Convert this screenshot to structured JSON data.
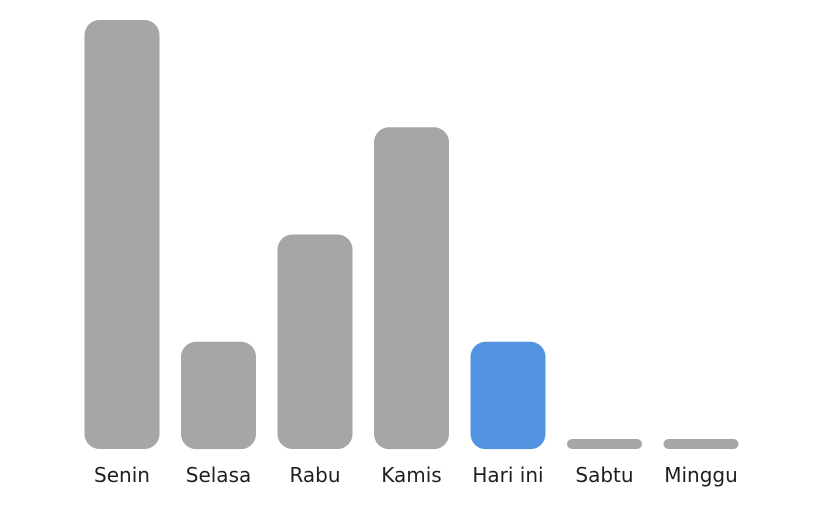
{
  "chart_data": {
    "type": "bar",
    "categories": [
      "Senin",
      "Selasa",
      "Rabu",
      "Kamis",
      "Hari ini",
      "Sabtu",
      "Minggu"
    ],
    "values": [
      4,
      1,
      2,
      3,
      1,
      0,
      0
    ],
    "ylim": [
      0,
      4
    ],
    "highlight_index": 4,
    "grid": false,
    "colors": {
      "bar": "#a6a6a6",
      "highlight": "#5294e2",
      "label": "#1f1f1f"
    }
  }
}
